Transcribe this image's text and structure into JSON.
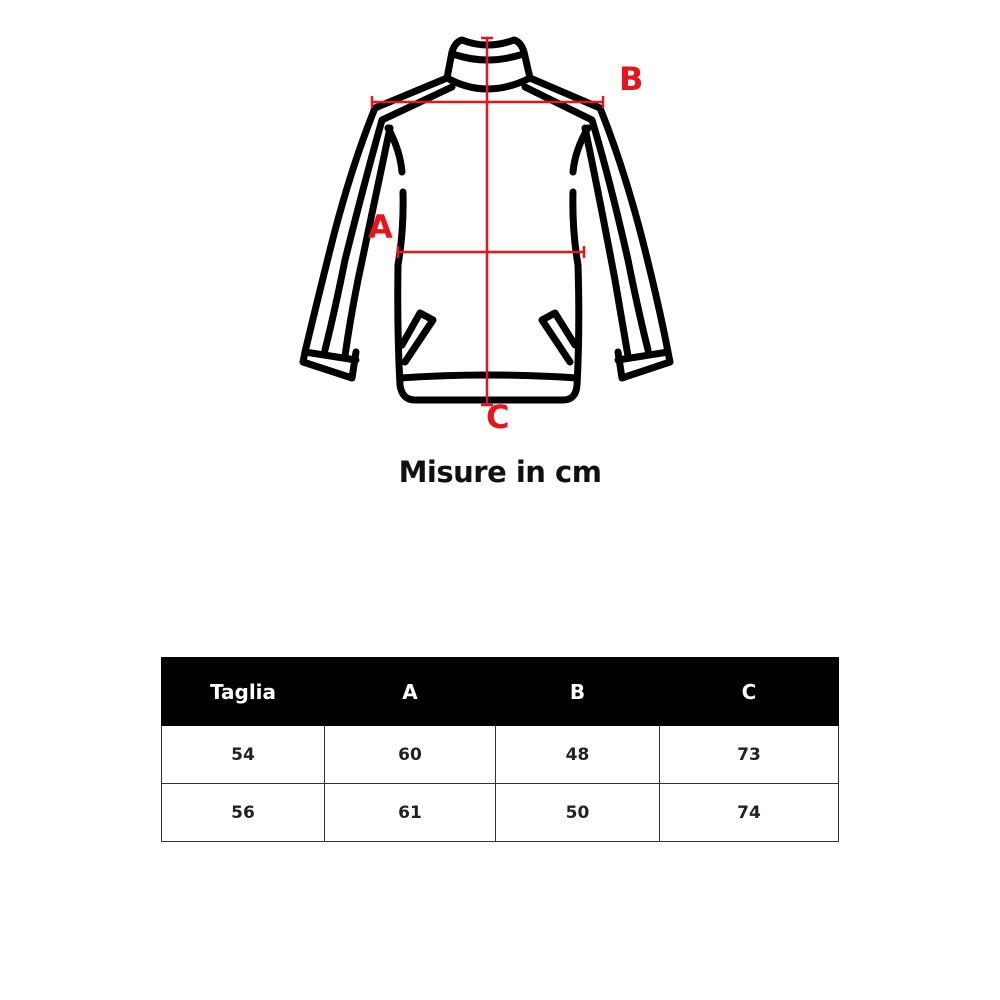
{
  "diagram": {
    "labels": {
      "a": "A",
      "b": "B",
      "c": "C"
    },
    "colors": {
      "outline": "#000000",
      "measure": "#e8141b"
    }
  },
  "title": "Misure in cm",
  "table": {
    "headers": [
      "Taglia",
      "A",
      "B",
      "C"
    ],
    "rows": [
      [
        "54",
        "60",
        "48",
        "73"
      ],
      [
        "56",
        "61",
        "50",
        "74"
      ]
    ]
  }
}
